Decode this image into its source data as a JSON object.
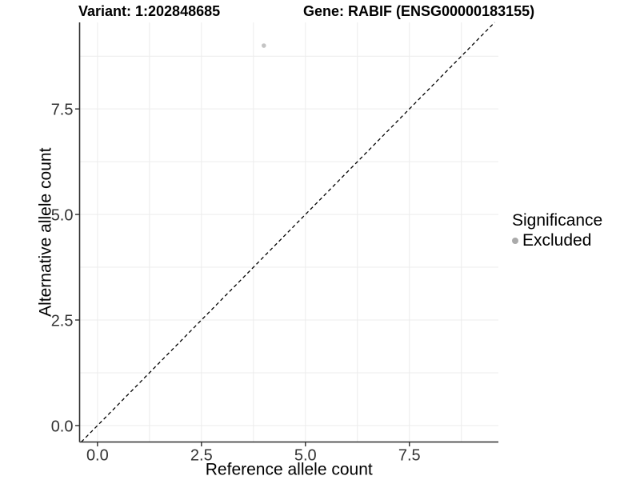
{
  "header": {
    "variant_title": "Variant: 1:202848685",
    "gene_title": "Gene: RABIF (ENSG00000183155)"
  },
  "chart_data": {
    "type": "scatter",
    "title": "Variant: 1:202848685   Gene: RABIF (ENSG00000183155)",
    "xlabel": "Reference allele count",
    "ylabel": "Alternative allele count",
    "xlim": [
      -0.43,
      9.64
    ],
    "ylim": [
      -0.39,
      9.55
    ],
    "x_ticks": {
      "values": [
        0,
        2.5,
        5,
        7.5
      ],
      "labels": [
        "0.0",
        "2.5",
        "5.0",
        "7.5"
      ]
    },
    "y_ticks": {
      "values": [
        0,
        2.5,
        5,
        7.5
      ],
      "labels": [
        "0.0",
        "2.5",
        "5.0",
        "7.5"
      ]
    },
    "minor_ticks": [
      1.25,
      3.75,
      6.25,
      8.75
    ],
    "grid": {
      "show": true,
      "color": "#ececec"
    },
    "axis_color": "#2e2e2e",
    "reference_line": {
      "type": "identity",
      "slope": 1,
      "intercept": 0,
      "style": "dashed",
      "color": "#000000"
    },
    "series": [
      {
        "name": "Excluded",
        "color": "#c4c4c4",
        "point_radius": 2.8,
        "points": [
          [
            4,
            9
          ]
        ]
      }
    ],
    "legend": {
      "title": "Significance",
      "position": "right",
      "items": [
        {
          "label": "Excluded",
          "color": "#aaaaaa"
        }
      ]
    }
  }
}
